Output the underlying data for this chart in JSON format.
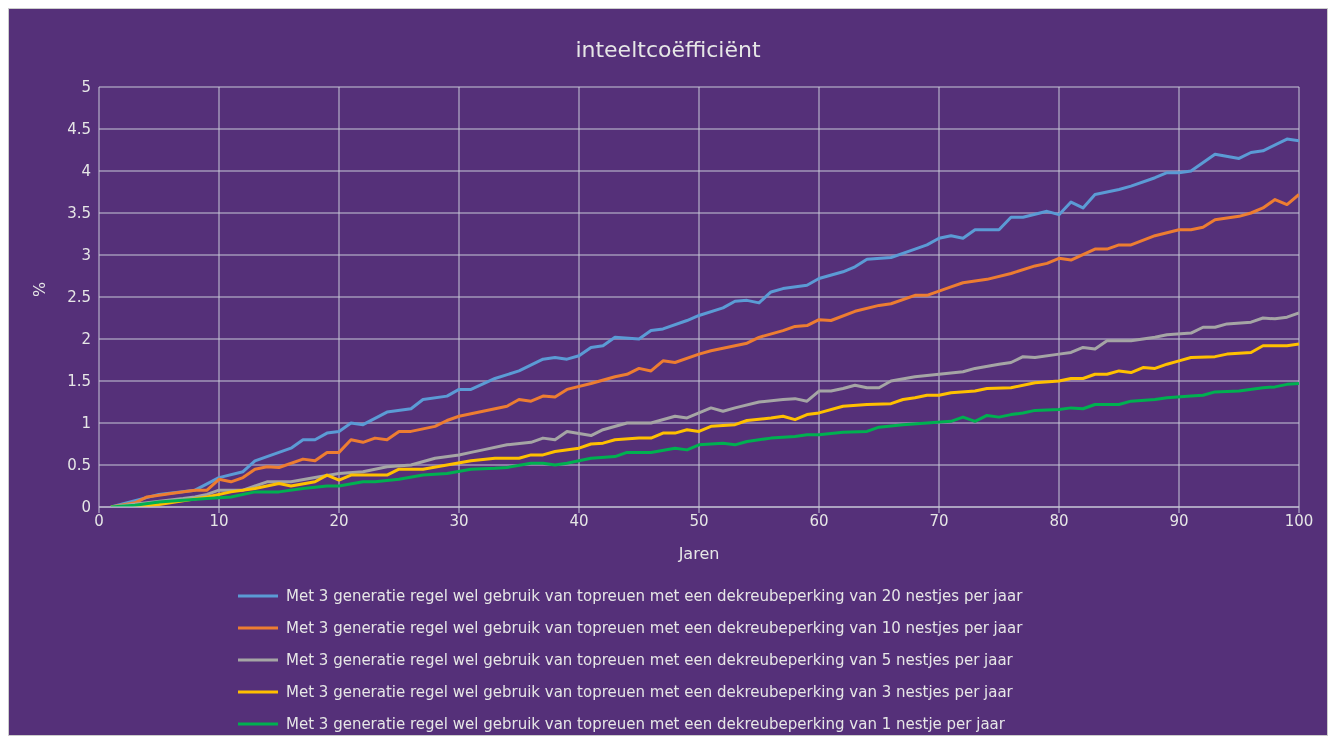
{
  "chart_data": {
    "type": "line",
    "title": "inteeltcoëfficiënt",
    "xlabel": "Jaren",
    "ylabel": "%",
    "xlim": [
      0,
      100
    ],
    "xticks": [
      0,
      10,
      20,
      30,
      40,
      50,
      60,
      70,
      80,
      90,
      100
    ],
    "ylim": [
      0,
      5
    ],
    "yticks": [
      0,
      0.5,
      1,
      1.5,
      2,
      2.5,
      3,
      3.5,
      4,
      4.5,
      5
    ],
    "grid": true,
    "legend": "bottom",
    "marker": "none",
    "line_style": "solid",
    "series": [
      {
        "name": "Met 3 generatie regel wel gebruik van topreuen met een dekreubeperking van 20 nestjes per jaar",
        "color": "#5b9bd5",
        "x": [
          1,
          5,
          8,
          10,
          12,
          13,
          15,
          16,
          17,
          18,
          19,
          20,
          21,
          22,
          24,
          26,
          27,
          29,
          30,
          31,
          33,
          35,
          37,
          38,
          39,
          40,
          41,
          42,
          43,
          45,
          46,
          47,
          49,
          50,
          52,
          53,
          54,
          55,
          56,
          57,
          59,
          60,
          62,
          63,
          64,
          66,
          68,
          69,
          70,
          71,
          72,
          73,
          75,
          76,
          77,
          79,
          80,
          81,
          82,
          83,
          85,
          86,
          88,
          89,
          90,
          91,
          93,
          95,
          96,
          97,
          99,
          100
        ],
        "values": [
          0,
          0.15,
          0.2,
          0.35,
          0.42,
          0.55,
          0.65,
          0.7,
          0.8,
          0.8,
          0.88,
          0.9,
          1.0,
          0.98,
          1.13,
          1.17,
          1.28,
          1.32,
          1.4,
          1.4,
          1.53,
          1.62,
          1.76,
          1.78,
          1.76,
          1.8,
          1.9,
          1.92,
          2.02,
          2.0,
          2.1,
          2.12,
          2.22,
          2.28,
          2.37,
          2.45,
          2.46,
          2.43,
          2.56,
          2.6,
          2.64,
          2.72,
          2.8,
          2.86,
          2.95,
          2.97,
          3.07,
          3.12,
          3.2,
          3.23,
          3.2,
          3.3,
          3.3,
          3.45,
          3.45,
          3.52,
          3.48,
          3.63,
          3.56,
          3.72,
          3.78,
          3.82,
          3.92,
          3.98,
          3.98,
          4.0,
          4.2,
          4.15,
          4.22,
          4.24,
          4.38,
          4.36
        ]
      },
      {
        "name": "Met 3 generatie regel wel gebruik van topreuen met een dekreubeperking van 10 nestjes per jaar",
        "color": "#ed7d31",
        "x": [
          1,
          3,
          4,
          6,
          8,
          9,
          10,
          11,
          12,
          13,
          14,
          15,
          17,
          18,
          19,
          20,
          21,
          22,
          23,
          24,
          25,
          26,
          28,
          29,
          30,
          32,
          34,
          35,
          36,
          37,
          38,
          39,
          41,
          43,
          44,
          45,
          46,
          47,
          48,
          50,
          51,
          53,
          54,
          55,
          57,
          58,
          59,
          60,
          61,
          63,
          65,
          66,
          68,
          69,
          71,
          72,
          74,
          76,
          78,
          79,
          80,
          81,
          83,
          84,
          85,
          86,
          88,
          90,
          91,
          92,
          93,
          95,
          96,
          97,
          98,
          99,
          100
        ],
        "values": [
          0,
          0.05,
          0.12,
          0.16,
          0.2,
          0.2,
          0.33,
          0.3,
          0.35,
          0.45,
          0.48,
          0.47,
          0.57,
          0.55,
          0.65,
          0.65,
          0.8,
          0.77,
          0.82,
          0.8,
          0.9,
          0.9,
          0.96,
          1.03,
          1.08,
          1.14,
          1.2,
          1.28,
          1.26,
          1.32,
          1.31,
          1.4,
          1.47,
          1.55,
          1.58,
          1.65,
          1.62,
          1.74,
          1.72,
          1.82,
          1.86,
          1.92,
          1.95,
          2.02,
          2.1,
          2.15,
          2.16,
          2.23,
          2.22,
          2.33,
          2.4,
          2.42,
          2.52,
          2.52,
          2.62,
          2.67,
          2.71,
          2.78,
          2.87,
          2.9,
          2.96,
          2.94,
          3.07,
          3.07,
          3.12,
          3.12,
          3.23,
          3.3,
          3.3,
          3.33,
          3.42,
          3.46,
          3.5,
          3.56,
          3.66,
          3.6,
          3.72
        ]
      },
      {
        "name": "Met 3 generatie regel wel gebruik van topreuen met een dekreubeperking van 5 nestjes per jaar",
        "color": "#a5a5a5",
        "x": [
          1,
          4,
          7,
          8,
          9,
          10,
          12,
          14,
          16,
          18,
          20,
          22,
          24,
          26,
          28,
          30,
          31,
          32,
          34,
          36,
          37,
          38,
          39,
          41,
          42,
          44,
          46,
          48,
          49,
          51,
          52,
          53,
          55,
          57,
          58,
          59,
          60,
          61,
          62,
          63,
          64,
          65,
          66,
          68,
          70,
          72,
          73,
          75,
          76,
          77,
          78,
          80,
          81,
          82,
          83,
          84,
          86,
          88,
          89,
          91,
          92,
          93,
          94,
          96,
          97,
          98,
          99,
          100
        ],
        "values": [
          0,
          0.05,
          0.1,
          0.12,
          0.15,
          0.2,
          0.2,
          0.3,
          0.3,
          0.35,
          0.4,
          0.42,
          0.48,
          0.5,
          0.58,
          0.62,
          0.65,
          0.68,
          0.74,
          0.77,
          0.82,
          0.8,
          0.9,
          0.85,
          0.92,
          1.0,
          1.0,
          1.08,
          1.06,
          1.18,
          1.14,
          1.18,
          1.25,
          1.28,
          1.29,
          1.26,
          1.38,
          1.38,
          1.41,
          1.45,
          1.42,
          1.42,
          1.5,
          1.55,
          1.58,
          1.61,
          1.65,
          1.7,
          1.72,
          1.79,
          1.78,
          1.82,
          1.84,
          1.9,
          1.88,
          1.98,
          1.98,
          2.02,
          2.05,
          2.07,
          2.14,
          2.14,
          2.18,
          2.2,
          2.25,
          2.24,
          2.26,
          2.31
        ]
      },
      {
        "name": "Met 3 generatie regel wel gebruik van topreuen met een dekreubeperking van 3 nestjes per jaar",
        "color": "#ffc000",
        "x": [
          1,
          3,
          5,
          9,
          11,
          13,
          15,
          16,
          18,
          19,
          20,
          21,
          24,
          25,
          27,
          29,
          31,
          33,
          35,
          36,
          37,
          38,
          40,
          41,
          42,
          43,
          45,
          46,
          47,
          48,
          49,
          50,
          51,
          53,
          54,
          56,
          57,
          58,
          59,
          60,
          62,
          64,
          66,
          67,
          68,
          69,
          70,
          71,
          73,
          74,
          76,
          78,
          80,
          81,
          82,
          83,
          84,
          85,
          86,
          87,
          88,
          89,
          90,
          91,
          93,
          94,
          96,
          97,
          99,
          100
        ],
        "values": [
          0,
          0,
          0.03,
          0.12,
          0.18,
          0.22,
          0.28,
          0.25,
          0.3,
          0.38,
          0.32,
          0.38,
          0.38,
          0.45,
          0.45,
          0.5,
          0.55,
          0.58,
          0.58,
          0.62,
          0.62,
          0.66,
          0.7,
          0.75,
          0.76,
          0.8,
          0.82,
          0.82,
          0.88,
          0.88,
          0.92,
          0.9,
          0.96,
          0.98,
          1.03,
          1.06,
          1.08,
          1.04,
          1.1,
          1.12,
          1.2,
          1.22,
          1.23,
          1.28,
          1.3,
          1.33,
          1.33,
          1.36,
          1.38,
          1.41,
          1.42,
          1.48,
          1.5,
          1.53,
          1.53,
          1.58,
          1.58,
          1.62,
          1.6,
          1.66,
          1.65,
          1.7,
          1.74,
          1.78,
          1.79,
          1.82,
          1.84,
          1.92,
          1.92,
          1.94
        ]
      },
      {
        "name": "Met 3 generatie regel wel gebruik van topreuen met een dekreubeperking van 1 nestje per jaar",
        "color": "#00b050",
        "x": [
          1,
          3,
          5,
          7,
          9,
          11,
          13,
          15,
          17,
          19,
          20,
          22,
          23,
          25,
          27,
          29,
          31,
          33,
          34,
          36,
          37,
          38,
          39,
          41,
          43,
          44,
          46,
          48,
          49,
          50,
          52,
          53,
          54,
          55,
          56,
          58,
          59,
          60,
          62,
          64,
          65,
          67,
          69,
          71,
          72,
          73,
          74,
          75,
          76,
          77,
          78,
          80,
          81,
          82,
          83,
          85,
          86,
          88,
          89,
          91,
          92,
          93,
          95,
          97,
          98,
          99,
          100
        ],
        "values": [
          0,
          0.02,
          0.06,
          0.08,
          0.1,
          0.12,
          0.18,
          0.18,
          0.22,
          0.25,
          0.25,
          0.3,
          0.3,
          0.33,
          0.38,
          0.4,
          0.45,
          0.46,
          0.47,
          0.52,
          0.52,
          0.5,
          0.52,
          0.58,
          0.6,
          0.65,
          0.65,
          0.7,
          0.68,
          0.74,
          0.76,
          0.74,
          0.78,
          0.8,
          0.82,
          0.84,
          0.86,
          0.86,
          0.89,
          0.9,
          0.95,
          0.98,
          1.0,
          1.02,
          1.07,
          1.02,
          1.09,
          1.07,
          1.1,
          1.12,
          1.15,
          1.16,
          1.18,
          1.17,
          1.22,
          1.22,
          1.26,
          1.28,
          1.3,
          1.32,
          1.33,
          1.37,
          1.38,
          1.42,
          1.43,
          1.46,
          1.47
        ]
      }
    ]
  }
}
